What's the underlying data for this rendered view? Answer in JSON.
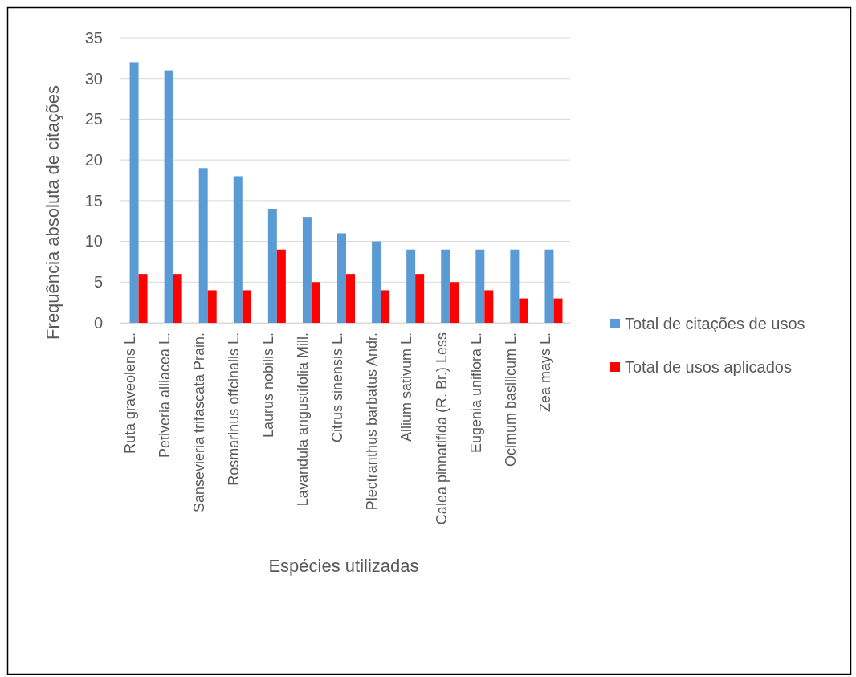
{
  "chart_data": {
    "type": "bar",
    "xlabel": "Espécies utilizadas",
    "ylabel": "Frequência absoluta de citações",
    "categories": [
      "Ruta graveolens L.",
      "Petiveria alliacea L.",
      "Sansevieria trifascata Prain.",
      "Rosmarinus offcinalis L.",
      "Laurus nobilis L.",
      "Lavandula angustifolia Mill.",
      "Citrus sinensis L.",
      "Plectranthus barbatus Andr.",
      "Allium  sativum L.",
      "Calea pinnatifida (R. Br.) Less",
      "Eugenia uniflora L.",
      "Ocimum basilicum L.",
      "Zea mays L."
    ],
    "series": [
      {
        "name": "Total de citações de usos",
        "color": "#5b9bd5",
        "values": [
          32,
          31,
          19,
          18,
          14,
          13,
          11,
          10,
          9,
          9,
          9,
          9,
          9
        ]
      },
      {
        "name": "Total de usos aplicados",
        "color": "#ff0000",
        "values": [
          6,
          6,
          4,
          4,
          9,
          5,
          6,
          4,
          6,
          5,
          4,
          3,
          3
        ]
      }
    ],
    "ylim": [
      0,
      35
    ],
    "yticks": [
      0,
      5,
      10,
      15,
      20,
      25,
      30,
      35
    ],
    "grid": "y",
    "legend": "right"
  }
}
